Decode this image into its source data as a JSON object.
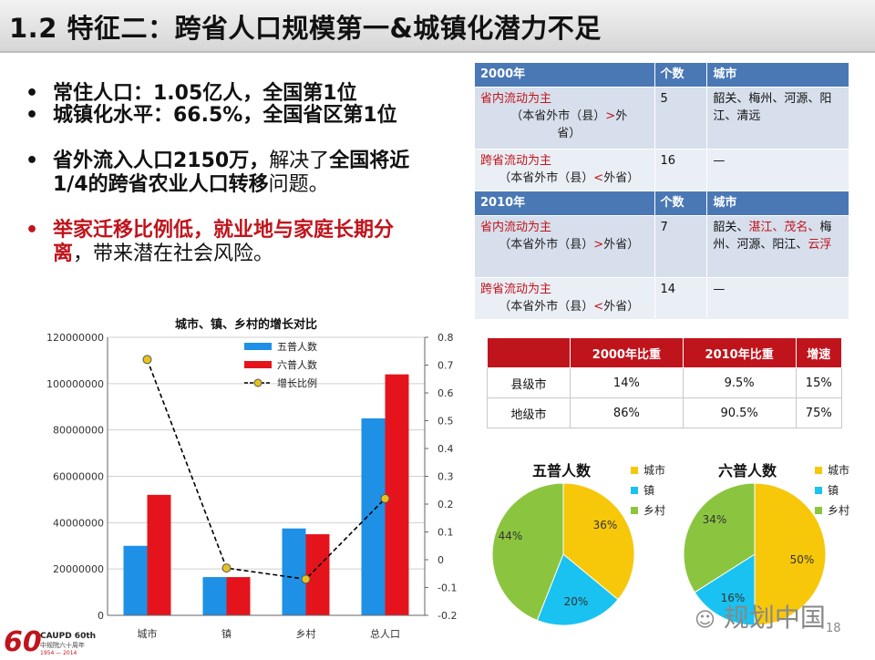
{
  "title": "1.2 特征二：跨省人口规模第一&城镇化潜力不足",
  "bullets": [
    {
      "bullet": "•",
      "line1": "常住人口：1.05亿人，全国第1位"
    },
    {
      "bullet": "•",
      "line1": "城镇化水平：66.5%，全国省区第1位"
    },
    {
      "bullet": "•",
      "p1": "省外流入人口2150万，",
      "p2": "解决了",
      "p3": "全国将近",
      "p4": "1/4的跨省农业人口转移",
      "p5": "问题。"
    },
    {
      "bullet": "•",
      "p1": "举家迁移比例低，",
      "p2": "就业地与家庭长期分",
      "p3": "离",
      "p4": "，带来潜在社会风险。"
    }
  ],
  "city_table": {
    "sections": [
      {
        "header": [
          "2000年",
          "个数",
          "城市"
        ],
        "rows": [
          {
            "type": "省内流动为主",
            "note1": "（本省外市（县）",
            "op": ">",
            "note2": "外",
            "note3": "省）",
            "count": "5",
            "cities": "韶关、梅州、河源、阳江、清远",
            "cities_highlight": ""
          },
          {
            "type": "跨省流动为主",
            "note1": "（本省外市（县）",
            "op": "<",
            "note2": "外省）",
            "note3": "",
            "count": "16",
            "cities": "—",
            "cities_highlight": ""
          }
        ]
      },
      {
        "header": [
          "2010年",
          "个数",
          "城市"
        ],
        "rows": [
          {
            "type": "省内流动为主",
            "note1": "（本省外市（县）",
            "op": ">",
            "note2": "外省）",
            "note3": "",
            "count": "7",
            "cities_a": "韶关、",
            "cities_b": "湛江、茂名、",
            "cities_c": "梅州、河源、阳江、",
            "cities_d": "云浮"
          },
          {
            "type": "跨省流动为主",
            "note1": "（本省外市（县）",
            "op": "<",
            "note2": "外省）",
            "note3": "",
            "count": "14",
            "cities": "—"
          }
        ]
      }
    ]
  },
  "speed_table": {
    "headers": [
      "",
      "2000年比重",
      "2010年比重",
      "增速"
    ],
    "rows": [
      [
        "县级市",
        "14%",
        "9.5%",
        "15%"
      ],
      [
        "地级市",
        "86%",
        "90.5%",
        "75%"
      ]
    ]
  },
  "chart_data": [
    {
      "type": "bar",
      "title": "城市、镇、乡村的增长对比",
      "categories": [
        "城市",
        "镇",
        "乡村",
        "总人口"
      ],
      "series": [
        {
          "name": "五普人数",
          "values": [
            30000000,
            16500000,
            37500000,
            85000000
          ],
          "color": "#1e90e6"
        },
        {
          "name": "六普人数",
          "values": [
            52000000,
            16500000,
            35000000,
            104000000
          ],
          "color": "#e5141c"
        },
        {
          "name": "增长比例",
          "values": [
            0.72,
            -0.03,
            -0.07,
            0.22
          ],
          "axis": "right",
          "style": "dashed-line-markers",
          "color": "#000000",
          "marker": "#e6c21e"
        }
      ],
      "y_left": {
        "ylim": [
          0,
          120000000
        ],
        "ticks": [
          "0",
          "20000000",
          "40000000",
          "60000000",
          "80000000",
          "100000000",
          "120000000"
        ]
      },
      "y_right": {
        "ylim": [
          -0.2,
          0.8
        ],
        "ticks": [
          "-0.2",
          "-0.1",
          "0",
          "0.1",
          "0.2",
          "0.3",
          "0.4",
          "0.5",
          "0.6",
          "0.7",
          "0.8"
        ]
      },
      "grid": true,
      "legend": "top-right"
    },
    {
      "type": "pie",
      "title": "五普人数",
      "labels": [
        "城市",
        "镇",
        "乡村"
      ],
      "values": [
        36,
        20,
        44
      ],
      "value_labels": [
        "36%",
        "20%",
        "44%"
      ],
      "colors": [
        "#f7c70a",
        "#19c2f0",
        "#8bc53f"
      ],
      "legend": "right"
    },
    {
      "type": "pie",
      "title": "六普人数",
      "labels": [
        "城市",
        "镇",
        "乡村"
      ],
      "values": [
        50,
        16,
        34
      ],
      "value_labels": [
        "50%",
        "16%",
        "34%"
      ],
      "colors": [
        "#f7c70a",
        "#19c2f0",
        "#8bc53f"
      ],
      "legend": "right"
    }
  ],
  "footer": {
    "logo_number": "60",
    "logo_text": "CAUPD 60th",
    "logo_sub": "中规院六十周年",
    "logo_years": "1954 — 2014",
    "watermark": "规划中国",
    "page": "18"
  }
}
